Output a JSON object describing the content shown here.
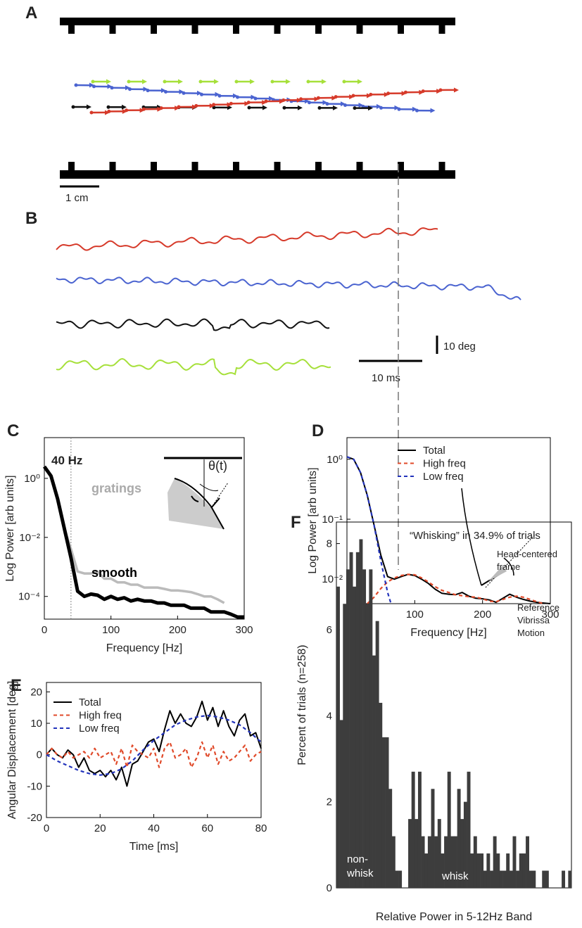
{
  "panel_a": {
    "label": "A",
    "scale_label": "1 cm"
  },
  "panel_b": {
    "label": "B",
    "scale_labels": [
      "10 deg",
      "10 ms"
    ]
  },
  "chart_data": [
    {
      "type": "line",
      "panel_label": "C",
      "xlabel": "Frequency [Hz]",
      "ylabel": "Log Power [arb units]",
      "log_y": true,
      "xlim": [
        0,
        300
      ],
      "ylim": [
        1.7e-05,
        24
      ],
      "xticks": [
        0,
        100,
        200,
        300
      ],
      "yticks": [
        {
          "value": 1,
          "label": "10⁰"
        },
        {
          "value": 0.01,
          "label": "10⁻²"
        },
        {
          "value": 0.0001,
          "label": "10⁻⁴"
        }
      ],
      "vline": {
        "x": 40,
        "label": "40 Hz"
      },
      "inset_label": "θ(t)",
      "legend": false,
      "series": [
        {
          "name": "gratings",
          "color": "#bbbbbb",
          "line_width": 3.5,
          "x": [
            0,
            10,
            20,
            30,
            40,
            50,
            60,
            70,
            80,
            90,
            100,
            110,
            120,
            130,
            140,
            150,
            160,
            170,
            180,
            190,
            200,
            210,
            220,
            230,
            240,
            250,
            260,
            270
          ],
          "values": [
            2.5,
            1.2,
            0.2,
            0.02,
            0.004,
            0.0007,
            0.0006,
            0.0006,
            0.0007,
            0.0004,
            0.0004,
            0.0003,
            0.0003,
            0.00025,
            0.00025,
            0.0002,
            0.0002,
            0.0002,
            0.00018,
            0.00016,
            0.00016,
            0.00015,
            0.00014,
            0.00012,
            0.0001,
            0.0001,
            8e-05,
            6e-05
          ]
        },
        {
          "name": "smooth",
          "color": "#000000",
          "line_width": 5,
          "x": [
            0,
            10,
            20,
            30,
            40,
            50,
            60,
            70,
            80,
            90,
            100,
            110,
            120,
            130,
            140,
            150,
            160,
            170,
            180,
            190,
            200,
            210,
            220,
            230,
            240,
            250,
            260,
            270,
            280,
            290,
            300
          ],
          "values": [
            2.5,
            1.2,
            0.2,
            0.02,
            0.002,
            0.00015,
            0.0001,
            0.00012,
            0.00011,
            8e-05,
            0.0001,
            8e-05,
            9e-05,
            7e-05,
            8e-05,
            7e-05,
            7e-05,
            6e-05,
            6e-05,
            5e-05,
            5e-05,
            5e-05,
            4e-05,
            4e-05,
            4e-05,
            3e-05,
            3e-05,
            3e-05,
            2.5e-05,
            2e-05,
            2e-05
          ]
        }
      ]
    },
    {
      "type": "line",
      "panel_label": "D",
      "xlabel": "Frequency [Hz]",
      "ylabel": "Log Power [arb units]",
      "log_y": true,
      "xlim": [
        0,
        300
      ],
      "ylim": [
        0.0039,
        2.3
      ],
      "xticks": [
        0,
        100,
        200,
        300
      ],
      "yticks": [
        {
          "value": 1,
          "label": "10⁰"
        },
        {
          "value": 0.1,
          "label": "10⁻¹"
        },
        {
          "value": 0.01,
          "label": "10⁻²"
        }
      ],
      "legend": true,
      "series": [
        {
          "name": "Total",
          "color": "#000000",
          "line_width": 2,
          "x": [
            0,
            10,
            20,
            30,
            40,
            50,
            60,
            70,
            80,
            90,
            100,
            110,
            120,
            130,
            140,
            150,
            160,
            170,
            180,
            190,
            200,
            210,
            220,
            230,
            240,
            250,
            260,
            270,
            280,
            290,
            300
          ],
          "values": [
            1.1,
            1.0,
            0.6,
            0.25,
            0.08,
            0.025,
            0.011,
            0.01,
            0.011,
            0.012,
            0.0115,
            0.01,
            0.0085,
            0.0068,
            0.0058,
            0.0056,
            0.0055,
            0.006,
            0.0052,
            0.0048,
            0.0047,
            0.0045,
            0.0041,
            0.0048,
            0.0056,
            0.005,
            0.0046,
            0.0043,
            0.0041,
            0.004,
            0.0039
          ]
        },
        {
          "name": "High freq",
          "color": "#e04a2a",
          "line_width": 2.2,
          "dash": true,
          "x": [
            30,
            40,
            50,
            60,
            70,
            80,
            90,
            100,
            110,
            120,
            130,
            140,
            150,
            160,
            170,
            180,
            190,
            200,
            210,
            220,
            230,
            240,
            250,
            260,
            270,
            280,
            290
          ],
          "values": [
            0.0039,
            0.005,
            0.007,
            0.009,
            0.0105,
            0.0115,
            0.012,
            0.0118,
            0.0105,
            0.009,
            0.0075,
            0.0065,
            0.006,
            0.0055,
            0.0053,
            0.0051,
            0.005,
            0.0047,
            0.0043,
            0.0042,
            0.0046,
            0.005,
            0.0052,
            0.005,
            0.0046,
            0.0042,
            0.0039
          ]
        },
        {
          "name": "Low freq",
          "color": "#2233bb",
          "line_width": 2.2,
          "dash": true,
          "x": [
            0,
            10,
            20,
            30,
            40,
            50,
            60,
            65
          ],
          "values": [
            1.1,
            1.0,
            0.6,
            0.25,
            0.08,
            0.02,
            0.006,
            0.0039
          ]
        }
      ]
    },
    {
      "type": "line",
      "panel_label": "E",
      "xlabel": "Time [ms]",
      "ylabel": "Angular Displacement [deg]",
      "log_y": false,
      "xlim": [
        0,
        80
      ],
      "ylim": [
        -20,
        23
      ],
      "xticks": [
        0,
        20,
        40,
        60,
        80
      ],
      "yticks": [
        -20,
        -10,
        0,
        10,
        20
      ],
      "legend": true,
      "series": [
        {
          "name": "Total",
          "color": "#000000",
          "line_width": 2,
          "x": [
            0,
            2,
            4,
            6,
            8,
            10,
            12,
            14,
            16,
            18,
            20,
            22,
            24,
            26,
            28,
            30,
            32,
            34,
            36,
            38,
            40,
            42,
            44,
            46,
            48,
            50,
            52,
            54,
            56,
            58,
            60,
            62,
            64,
            66,
            68,
            70,
            72,
            74,
            76,
            78,
            80
          ],
          "values": [
            0,
            2,
            0,
            -1,
            1.5,
            0,
            -4,
            -1,
            -5,
            -6,
            -5,
            -7,
            -5,
            -8,
            -4,
            -10,
            -3,
            -2,
            1,
            4,
            5,
            1,
            8,
            14,
            10,
            13,
            10,
            9,
            12,
            17,
            11,
            15,
            9,
            14,
            9,
            6,
            11,
            13,
            6,
            7,
            2
          ]
        },
        {
          "name": "High freq",
          "color": "#e04a2a",
          "line_width": 2.2,
          "dash": true,
          "x": [
            0,
            2,
            4,
            6,
            8,
            10,
            12,
            14,
            16,
            18,
            20,
            22,
            24,
            26,
            28,
            30,
            32,
            34,
            36,
            38,
            40,
            42,
            44,
            46,
            48,
            50,
            52,
            54,
            56,
            58,
            60,
            62,
            64,
            66,
            68,
            70,
            72,
            74,
            76,
            78,
            80
          ],
          "values": [
            0,
            2,
            0,
            -1,
            1,
            -1,
            0,
            1,
            -1,
            2,
            -1,
            0,
            1,
            -3,
            2,
            -4,
            3,
            1,
            0,
            -1,
            2,
            -4,
            2,
            4,
            -1,
            0,
            2,
            -4,
            -1,
            4,
            -1,
            3,
            -3,
            1,
            -2,
            -1,
            1,
            3,
            -2,
            0,
            1
          ]
        },
        {
          "name": "Low freq",
          "color": "#2233bb",
          "line_width": 2.2,
          "dash": true,
          "x": [
            0,
            4,
            8,
            12,
            16,
            20,
            24,
            28,
            32,
            36,
            40,
            44,
            48,
            52,
            56,
            60,
            64,
            68,
            72,
            76,
            80
          ],
          "values": [
            0,
            -2,
            -3.5,
            -5,
            -6,
            -6.5,
            -6,
            -4.5,
            -2,
            1.5,
            4.5,
            7,
            9.5,
            11,
            12,
            12.5,
            12,
            11,
            9.5,
            7,
            4
          ]
        }
      ]
    },
    {
      "type": "histogram",
      "panel_label": "F",
      "xlabel": "Relative Power in 5-12Hz Band",
      "ylabel": "Percent of trials (n=258)",
      "ylim": [
        0,
        8.5
      ],
      "yticks": [
        0,
        2,
        4,
        6,
        8
      ],
      "color": "#3d3d3d",
      "annotation": "“Whisking” in 34.9% of trials",
      "group_labels": [
        [
          "non-",
          "whisk"
        ],
        [
          "whisk"
        ]
      ],
      "inset_labels": [
        [
          "Head-centered",
          "frame"
        ],
        [
          "Reference",
          "Vibrissa",
          "Motion"
        ]
      ],
      "values": [
        7.0,
        3.9,
        6.6,
        7.4,
        7.8,
        7.0,
        7.8,
        8.1,
        7.4,
        6.6,
        7.4,
        5.4,
        6.2,
        4.3,
        3.5,
        3.5,
        2.3,
        1.2,
        0.4,
        0.4,
        0,
        0,
        1.6,
        2.7,
        1.6,
        2.7,
        1.2,
        0.8,
        1.2,
        2.3,
        1.2,
        1.6,
        0.8,
        1.2,
        2.7,
        1.2,
        1.2,
        2.3,
        1.6,
        2.0,
        2.7,
        0.8,
        1.2,
        0.8,
        0.8,
        0.4,
        0.8,
        0.4,
        1.2,
        0.8,
        0.4,
        0.4,
        0.8,
        0.4,
        1.2,
        0.4,
        0.8,
        0.8,
        1.2,
        0.4,
        0.4,
        0,
        0,
        0.4,
        0.4,
        0,
        0,
        0,
        0,
        0.4,
        0,
        0.4
      ]
    }
  ]
}
